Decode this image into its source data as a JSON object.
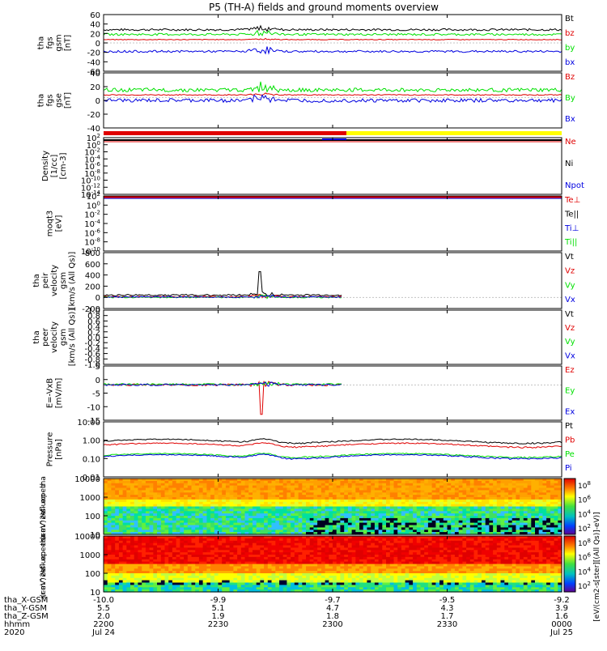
{
  "title": "P5 (TH-A) fields and ground moments overview",
  "ephemeris": {
    "labels": [
      "tha_X-GSM",
      "tha_Y-GSM",
      "tha_Z-GSM",
      "hhmm",
      "2020"
    ],
    "columns": [
      {
        "x": "-10.0",
        "y": "5.5",
        "z": "2.0",
        "hhmm": "2200",
        "date": "Jul 24"
      },
      {
        "x": "-9.9",
        "y": "5.1",
        "z": "1.9",
        "hhmm": "2230",
        "date": ""
      },
      {
        "x": "-9.7",
        "y": "4.7",
        "z": "1.8",
        "hhmm": "2300",
        "date": ""
      },
      {
        "x": "-9.5",
        "y": "4.3",
        "z": "1.7",
        "hhmm": "2330",
        "date": ""
      },
      {
        "x": "-9.2",
        "y": "3.9",
        "z": "1.6",
        "hhmm": "0000",
        "date": "Jul 25"
      }
    ]
  },
  "colorbar": {
    "label": "[eV/(cm2-s[ster][(All Qs)]-eV)]",
    "ticks": [
      "10^8",
      "10^6",
      "10^4",
      "10^2"
    ]
  },
  "colors": {
    "black": "#000000",
    "red": "#e00000",
    "green": "#00e000",
    "blue": "#0000e0",
    "yellow": "#ffff00"
  },
  "chart_data": [
    {
      "type": "line",
      "id": "fgs-gsm",
      "ylabel": [
        "tha",
        "fgs",
        "gsm",
        "[nT]"
      ],
      "yticks": [
        "60",
        "40",
        "20",
        "0",
        "-20",
        "-40",
        "-60"
      ],
      "ylim": [
        -60,
        60
      ],
      "series": [
        {
          "name": "Bt",
          "color": "#000000",
          "base": 28,
          "amp": 3
        },
        {
          "name": "bz",
          "color": "#e00000",
          "base": 7,
          "amp": 1
        },
        {
          "name": "by",
          "color": "#00e000",
          "base": 18,
          "amp": 3
        },
        {
          "name": "bx",
          "color": "#0000e0",
          "base": -18,
          "amp": 3
        }
      ]
    },
    {
      "type": "line",
      "id": "fgs-gse",
      "ylabel": [
        "tha",
        "fgs",
        "gse",
        "[nT]"
      ],
      "yticks": [
        "40",
        "20",
        "0",
        "-20",
        "-40"
      ],
      "ylim": [
        -50,
        40
      ],
      "series": [
        {
          "name": "Bz",
          "color": "#e00000",
          "base": 4,
          "amp": 1
        },
        {
          "name": "By",
          "color": "#00e000",
          "base": 12,
          "amp": 4
        },
        {
          "name": "Bx",
          "color": "#0000e0",
          "base": -5,
          "amp": 4
        }
      ]
    },
    {
      "type": "line",
      "id": "density",
      "ylabel": [
        "Density",
        "[1/cc]",
        "[cm-3]"
      ],
      "yticks": [
        "10^2",
        "10^0",
        "10^-2",
        "10^-4",
        "10^-6",
        "10^-8",
        "10^-10",
        "10^-12",
        "10^-14"
      ],
      "series": [
        {
          "name": "Ne",
          "color": "#e00000"
        },
        {
          "name": "Ni",
          "color": "#000000"
        },
        {
          "name": "Npot",
          "color": "#0000e0"
        }
      ]
    },
    {
      "type": "line",
      "id": "temperature",
      "ylabel": [
        "moqt3",
        "[eV]"
      ],
      "yticks": [
        "10^2",
        "10^0",
        "10^-2",
        "10^-4",
        "10^-6",
        "10^-8",
        "10^-10"
      ],
      "series": [
        {
          "name": "Te⊥",
          "color": "#e00000"
        },
        {
          "name": "Te||",
          "color": "#000000"
        },
        {
          "name": "Ti⊥",
          "color": "#0000e0"
        },
        {
          "name": "Ti||",
          "color": "#00e000"
        }
      ]
    },
    {
      "type": "line",
      "id": "peir-velocity",
      "ylabel": [
        "tha",
        "peir",
        "velocity",
        "gsm",
        "[km/s (All Qs)]"
      ],
      "yticks": [
        "800",
        "600",
        "400",
        "200",
        "0",
        "-200"
      ],
      "ylim": [
        -200,
        800
      ],
      "series": [
        {
          "name": "Vt",
          "color": "#000000",
          "base": 40,
          "amp": 20
        },
        {
          "name": "Vz",
          "color": "#e00000",
          "base": 10,
          "amp": 15
        },
        {
          "name": "Vy",
          "color": "#00e000",
          "base": 0,
          "amp": 15
        },
        {
          "name": "Vx",
          "color": "#0000e0",
          "base": 5,
          "amp": 15
        }
      ]
    },
    {
      "type": "line",
      "id": "peer-velocity",
      "ylabel": [
        "tha",
        "peer",
        "velocity",
        "gsm",
        "[km/s (All Qs)]"
      ],
      "yticks": [
        "1.0",
        "0.8",
        "0.6",
        "0.4",
        "0.2",
        "0.0",
        "-0.2",
        "-0.4",
        "-0.6",
        "-0.8",
        "-1.0"
      ],
      "ylim": [
        -1,
        1
      ],
      "series": [
        {
          "name": "Vt",
          "color": "#000000"
        },
        {
          "name": "Vz",
          "color": "#e00000"
        },
        {
          "name": "Vy",
          "color": "#00e000"
        },
        {
          "name": "Vx",
          "color": "#0000e0"
        }
      ]
    },
    {
      "type": "line",
      "id": "efield",
      "ylabel": [
        "E=-VxB",
        "[mV/m]"
      ],
      "yticks": [
        "5",
        "0",
        "-5",
        "-10",
        "-15"
      ],
      "ylim": [
        -15,
        8
      ],
      "series": [
        {
          "name": "Ez",
          "color": "#e00000",
          "base": 0,
          "amp": 0.6
        },
        {
          "name": "Ey",
          "color": "#00e000",
          "base": 0.2,
          "amp": 0.5
        },
        {
          "name": "Ex",
          "color": "#0000e0",
          "base": 0,
          "amp": 0.5
        }
      ]
    },
    {
      "type": "line",
      "id": "pressure",
      "ylabel": [
        "Pressure",
        "[nPa]"
      ],
      "yticks": [
        "10.00",
        "1.00",
        "0.10",
        "0.01"
      ],
      "series": [
        {
          "name": "Pt",
          "color": "#000000",
          "base": 0.9
        },
        {
          "name": "Pb",
          "color": "#e00000",
          "base": 0.55
        },
        {
          "name": "Pe",
          "color": "#00e000",
          "base": 0.15
        },
        {
          "name": "Pi",
          "color": "#0000e0",
          "base": 0.13
        }
      ]
    },
    {
      "type": "heatmap",
      "id": "peir-eflux",
      "ylabel": [
        "tha",
        "peir",
        "en",
        "eflux",
        "eV",
        "(cm^2-s-",
        "sr-eV)"
      ],
      "yticks": [
        "10000",
        "1000",
        "100",
        "10"
      ]
    },
    {
      "type": "heatmap",
      "id": "peer-eflux",
      "ylabel": [
        "tha",
        "peer",
        "en",
        "eflux",
        "eV",
        "(cm^2-s-",
        "sr-eV)"
      ],
      "yticks": [
        "10000",
        "1000",
        "100",
        "10"
      ]
    }
  ]
}
